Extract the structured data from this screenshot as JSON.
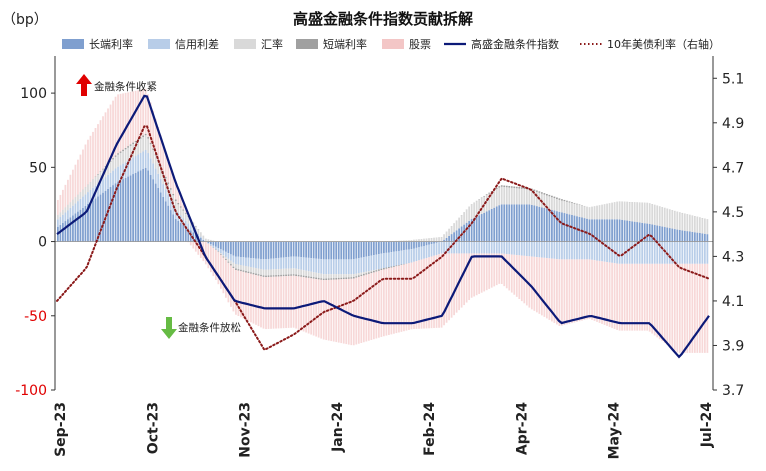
{
  "chart_data": {
    "type": "bar",
    "title": "高盛金融条件指数贡献拆解",
    "left_axis_unit": "（bp）",
    "ylim": [
      -100,
      125
    ],
    "ylim_right": [
      3.7,
      5.2
    ],
    "y_ticks": [
      100,
      50,
      0,
      -50,
      -100
    ],
    "y_ticks_right": [
      5.1,
      4.9,
      4.7,
      4.5,
      4.3,
      4.1,
      3.9,
      3.7
    ],
    "x_ticks": [
      "Sep-23",
      "Oct-23",
      "Nov-23",
      "Jan-24",
      "Feb-24",
      "Apr-24",
      "May-24",
      "Jul-24"
    ],
    "annotations": {
      "tightening": "金融条件收紧",
      "easing": "金融条件放松"
    },
    "legend": [
      "长端利率",
      "信用利差",
      "汇率",
      "短端利率",
      "股票",
      "高盛金融条件指数",
      "10年美债利率（右轴）"
    ],
    "x": [
      "2023-09-01",
      "2023-09-15",
      "2023-10-01",
      "2023-10-15",
      "2023-11-01",
      "2023-11-15",
      "2023-12-01",
      "2023-12-15",
      "2024-01-01",
      "2024-01-15",
      "2024-02-01",
      "2024-02-15",
      "2024-03-01",
      "2024-03-15",
      "2024-04-01",
      "2024-04-15",
      "2024-05-01",
      "2024-05-15",
      "2024-06-01",
      "2024-06-15",
      "2024-07-01",
      "2024-07-15",
      "2024-07-31"
    ],
    "stack_series": [
      {
        "name": "长端利率",
        "color": "#7f9fcf",
        "values": [
          10,
          25,
          40,
          50,
          15,
          0,
          -10,
          -12,
          -10,
          -12,
          -12,
          -8,
          -5,
          0,
          15,
          25,
          25,
          20,
          15,
          15,
          12,
          8,
          5
        ]
      },
      {
        "name": "信用利差",
        "color": "#b8cde8",
        "values": [
          5,
          8,
          10,
          12,
          6,
          0,
          -5,
          -7,
          -8,
          -10,
          -10,
          -10,
          -9,
          -8,
          -8,
          -8,
          -10,
          -12,
          -12,
          -15,
          -15,
          -15,
          -15
        ]
      },
      {
        "name": "汇率",
        "color": "#d9d9d9",
        "values": [
          3,
          5,
          8,
          10,
          6,
          2,
          -3,
          -4,
          -4,
          -3,
          -2,
          0,
          1,
          3,
          10,
          12,
          10,
          8,
          8,
          12,
          14,
          12,
          10
        ]
      },
      {
        "name": "短端利率",
        "color": "#a0a0a0",
        "values": [
          0,
          0,
          1,
          1,
          1,
          0,
          -1,
          -1,
          -1,
          -1,
          -1,
          -1,
          0,
          0,
          0,
          1,
          1,
          1,
          0,
          0,
          0,
          0,
          0
        ]
      },
      {
        "name": "股票",
        "color": "#f7d8d8",
        "values": [
          10,
          30,
          40,
          30,
          10,
          -15,
          -30,
          -35,
          -35,
          -40,
          -45,
          -45,
          -45,
          -50,
          -30,
          -20,
          -35,
          -45,
          -40,
          -45,
          -45,
          -60,
          -60
        ]
      }
    ],
    "fci_index": {
      "name": "高盛金融条件指数",
      "color": "#0c1a78",
      "values": [
        5,
        20,
        65,
        100,
        40,
        -10,
        -40,
        -45,
        -45,
        -40,
        -50,
        -55,
        -55,
        -50,
        -10,
        -10,
        -30,
        -55,
        -50,
        -55,
        -55,
        -78,
        -50
      ]
    },
    "ust10y": {
      "name": "10年美债利率（右轴）",
      "color": "#8b1a1a",
      "values": [
        4.1,
        4.25,
        4.6,
        4.9,
        4.5,
        4.3,
        4.1,
        3.88,
        3.95,
        4.05,
        4.1,
        4.2,
        4.2,
        4.3,
        4.45,
        4.65,
        4.6,
        4.45,
        4.4,
        4.3,
        4.4,
        4.25,
        4.2
      ]
    }
  }
}
